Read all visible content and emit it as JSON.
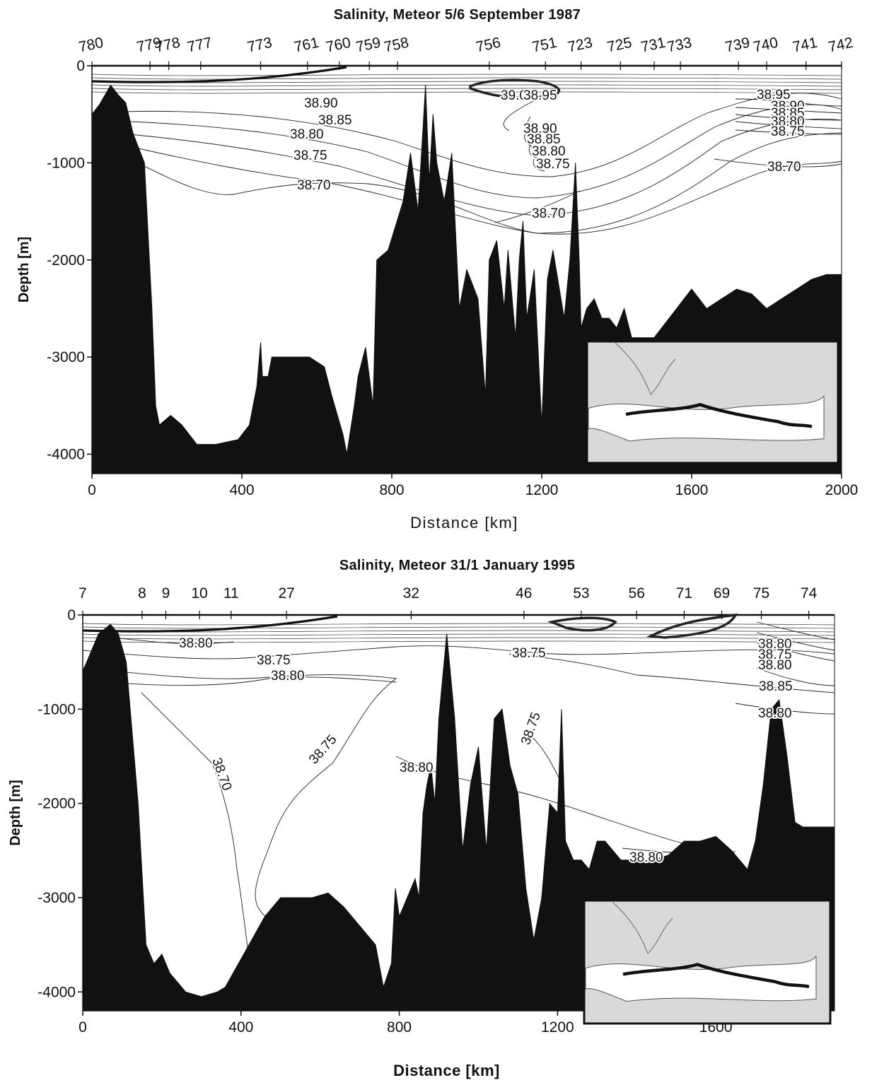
{
  "chart_data": [
    {
      "type": "line",
      "title": "Salinity, Meteor 5/6 September 1987",
      "xlabel": "Distance [km]",
      "ylabel": "Depth [m]",
      "xlim": [
        0,
        2000
      ],
      "ylim": [
        -4200,
        0
      ],
      "x_ticks": [
        0,
        400,
        800,
        1200,
        1600,
        2000
      ],
      "y_ticks": [
        0,
        -1000,
        -2000,
        -3000,
        -4000
      ],
      "stations": [
        {
          "label": "780",
          "x": 0
        },
        {
          "label": "779",
          "x": 155
        },
        {
          "label": "778",
          "x": 205
        },
        {
          "label": "777",
          "x": 290
        },
        {
          "label": "773",
          "x": 450
        },
        {
          "label": "761",
          "x": 575
        },
        {
          "label": "760",
          "x": 660
        },
        {
          "label": "759",
          "x": 740
        },
        {
          "label": "758",
          "x": 815
        },
        {
          "label": "756",
          "x": 1060
        },
        {
          "label": "751",
          "x": 1210
        },
        {
          "label": "723",
          "x": 1305
        },
        {
          "label": "725",
          "x": 1410
        },
        {
          "label": "731",
          "x": 1500
        },
        {
          "label": "733",
          "x": 1570
        },
        {
          "label": "739",
          "x": 1725
        },
        {
          "label": "740",
          "x": 1800
        },
        {
          "label": "741",
          "x": 1905
        },
        {
          "label": "742",
          "x": 2000
        }
      ],
      "contour_labels": [
        "38.90",
        "38.85",
        "38.80",
        "38.75",
        "38.70",
        "39.00",
        "38.95",
        "38.90",
        "38.85",
        "38.80",
        "38.75",
        "38.70",
        "38.95",
        "38.90",
        "38.85",
        "38.80",
        "38.75",
        "38.70"
      ],
      "bathymetry": {
        "x": [
          0,
          20,
          50,
          70,
          90,
          110,
          140,
          160,
          170,
          180,
          210,
          240,
          280,
          330,
          390,
          420,
          440,
          450,
          455,
          470,
          480,
          500,
          540,
          580,
          620,
          640,
          670,
          680,
          700,
          710,
          730,
          750,
          760,
          790,
          830,
          850,
          870,
          890,
          900,
          910,
          920,
          940,
          960,
          980,
          1000,
          1030,
          1050,
          1060,
          1080,
          1100,
          1110,
          1130,
          1140,
          1150,
          1160,
          1180,
          1200,
          1215,
          1230,
          1260,
          1275,
          1290,
          1300,
          1305,
          1320,
          1340,
          1360,
          1380,
          1400,
          1420,
          1440,
          1460,
          1480,
          1500,
          1520,
          1540,
          1560,
          1580,
          1600,
          1640,
          1680,
          1720,
          1760,
          1800,
          1840,
          1880,
          1920,
          1960,
          2000
        ],
        "y": [
          -500,
          -400,
          -200,
          -300,
          -380,
          -700,
          -1000,
          -2500,
          -3500,
          -3700,
          -3600,
          -3700,
          -3900,
          -3900,
          -3850,
          -3700,
          -3300,
          -2850,
          -3200,
          -3200,
          -3000,
          -3000,
          -3000,
          -3000,
          -3100,
          -3400,
          -3800,
          -4000,
          -3500,
          -3200,
          -2900,
          -3500,
          -2000,
          -1900,
          -1400,
          -900,
          -1500,
          -200,
          -1200,
          -500,
          -1000,
          -1400,
          -900,
          -2500,
          -2100,
          -2400,
          -3400,
          -2000,
          -1800,
          -2500,
          -1900,
          -2800,
          -2000,
          -1600,
          -2600,
          -2100,
          -3700,
          -2200,
          -1900,
          -2600,
          -2000,
          -1000,
          -2000,
          -2700,
          -2500,
          -2400,
          -2600,
          -2600,
          -2700,
          -2500,
          -2800,
          -2800,
          -2800,
          -2800,
          -2700,
          -2600,
          -2500,
          -2400,
          -2300,
          -2500,
          -2400,
          -2300,
          -2350,
          -2500,
          -2400,
          -2300,
          -2200,
          -2150,
          -2150
        ]
      },
      "inset_map": "Eastern Mediterranean section track"
    },
    {
      "type": "line",
      "title": "Salinity, Meteor 31/1 January 1995",
      "xlabel": "Distance [km]",
      "ylabel": "Depth [m]",
      "xlim": [
        0,
        1900
      ],
      "ylim": [
        -4200,
        0
      ],
      "x_ticks": [
        0,
        400,
        800,
        1200,
        1600
      ],
      "y_ticks": [
        0,
        -1000,
        -2000,
        -3000,
        -4000
      ],
      "stations": [
        {
          "label": "7",
          "x": 0
        },
        {
          "label": "8",
          "x": 150
        },
        {
          "label": "9",
          "x": 210
        },
        {
          "label": "10",
          "x": 295
        },
        {
          "label": "11",
          "x": 375
        },
        {
          "label": "27",
          "x": 515
        },
        {
          "label": "32",
          "x": 830
        },
        {
          "label": "46",
          "x": 1115
        },
        {
          "label": "53",
          "x": 1260
        },
        {
          "label": "56",
          "x": 1400
        },
        {
          "label": "71",
          "x": 1520
        },
        {
          "label": "69",
          "x": 1615
        },
        {
          "label": "75",
          "x": 1715
        },
        {
          "label": "74",
          "x": 1835
        }
      ],
      "contour_labels": [
        "38.80",
        "38.75",
        "38.80",
        "38.75",
        "38.70",
        "38.75",
        "38.80",
        "38.80",
        "38.75",
        "38.80",
        "38.75",
        "38.80",
        "38.85",
        "38.80",
        "38.75"
      ],
      "bathymetry": {
        "x": [
          0,
          20,
          40,
          70,
          90,
          110,
          120,
          140,
          160,
          180,
          200,
          220,
          260,
          300,
          340,
          360,
          380,
          420,
          460,
          500,
          540,
          580,
          620,
          660,
          700,
          740,
          760,
          780,
          790,
          800,
          820,
          840,
          850,
          860,
          870,
          880,
          890,
          900,
          920,
          940,
          960,
          980,
          1000,
          1020,
          1040,
          1060,
          1080,
          1100,
          1120,
          1140,
          1160,
          1180,
          1200,
          1210,
          1220,
          1240,
          1260,
          1280,
          1300,
          1320,
          1340,
          1360,
          1400,
          1440,
          1480,
          1520,
          1560,
          1600,
          1640,
          1660,
          1680,
          1700,
          1720,
          1740,
          1760,
          1780,
          1800,
          1820,
          1840,
          1880,
          1900
        ],
        "y": [
          -600,
          -400,
          -200,
          -100,
          -200,
          -500,
          -1000,
          -2000,
          -3500,
          -3700,
          -3600,
          -3800,
          -4000,
          -4050,
          -4000,
          -3950,
          -3800,
          -3500,
          -3200,
          -3000,
          -3000,
          -3000,
          -2950,
          -3100,
          -3300,
          -3500,
          -3950,
          -3700,
          -2900,
          -3200,
          -3000,
          -2800,
          -3000,
          -2100,
          -1800,
          -1600,
          -2000,
          -1100,
          -200,
          -1100,
          -2500,
          -1800,
          -1400,
          -2500,
          -1100,
          -1000,
          -1600,
          -1900,
          -2900,
          -3450,
          -3000,
          -2000,
          -2100,
          -1000,
          -2400,
          -2600,
          -2600,
          -2700,
          -2400,
          -2400,
          -2500,
          -2600,
          -2600,
          -2600,
          -2550,
          -2400,
          -2400,
          -2350,
          -2500,
          -2600,
          -2700,
          -2400,
          -1800,
          -1000,
          -900,
          -1500,
          -2200,
          -2250,
          -2250,
          -2250,
          -2250
        ]
      },
      "inset_map": "Eastern Mediterranean section track"
    }
  ]
}
